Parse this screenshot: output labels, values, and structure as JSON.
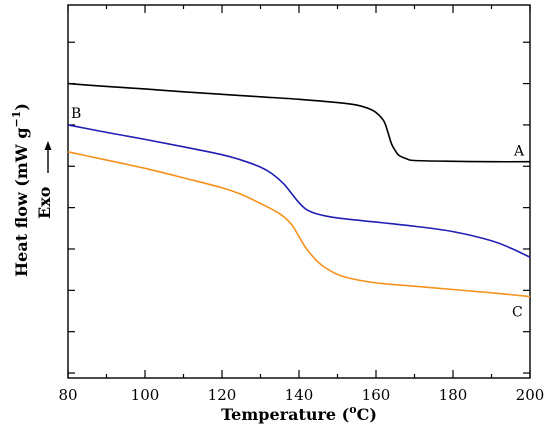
{
  "chart_data": {
    "type": "line",
    "xlabel": "Temperature (°C)",
    "xlabel_parts": {
      "main": "Temperature (",
      "sup": "o",
      "tail": "C)"
    },
    "ylabel_parts": {
      "main": "Heat flow (mW g",
      "sup": "−1",
      "tail": ")"
    },
    "exo_label": "Exo",
    "xlim": [
      80,
      200
    ],
    "xticks": [
      80,
      100,
      120,
      140,
      160,
      180,
      200
    ],
    "y_tick_labels_shown": false,
    "grid": false,
    "legend": "none",
    "series": [
      {
        "label": "A",
        "color": "#000000",
        "points": [
          [
            80,
            0.0
          ],
          [
            90,
            -0.07
          ],
          [
            100,
            -0.13
          ],
          [
            110,
            -0.2
          ],
          [
            120,
            -0.26
          ],
          [
            130,
            -0.32
          ],
          [
            140,
            -0.38
          ],
          [
            150,
            -0.46
          ],
          [
            155,
            -0.52
          ],
          [
            158,
            -0.6
          ],
          [
            160,
            -0.7
          ],
          [
            162,
            -0.9
          ],
          [
            163,
            -1.15
          ],
          [
            164,
            -1.45
          ],
          [
            165,
            -1.62
          ],
          [
            166,
            -1.74
          ],
          [
            168,
            -1.82
          ],
          [
            170,
            -1.86
          ],
          [
            180,
            -1.88
          ],
          [
            190,
            -1.89
          ],
          [
            200,
            -1.89
          ]
        ]
      },
      {
        "label": "B",
        "color": "#1f1fb4",
        "points": [
          [
            80,
            -1.0
          ],
          [
            90,
            -1.18
          ],
          [
            100,
            -1.35
          ],
          [
            110,
            -1.53
          ],
          [
            120,
            -1.72
          ],
          [
            125,
            -1.85
          ],
          [
            130,
            -2.02
          ],
          [
            133,
            -2.18
          ],
          [
            136,
            -2.42
          ],
          [
            138,
            -2.65
          ],
          [
            140,
            -2.88
          ],
          [
            142,
            -3.05
          ],
          [
            145,
            -3.16
          ],
          [
            150,
            -3.25
          ],
          [
            160,
            -3.35
          ],
          [
            170,
            -3.45
          ],
          [
            180,
            -3.58
          ],
          [
            190,
            -3.8
          ],
          [
            195,
            -3.98
          ],
          [
            200,
            -4.2
          ]
        ]
      },
      {
        "label": "C",
        "color": "#f5921e",
        "points": [
          [
            80,
            -1.65
          ],
          [
            90,
            -1.85
          ],
          [
            100,
            -2.05
          ],
          [
            110,
            -2.28
          ],
          [
            120,
            -2.52
          ],
          [
            125,
            -2.68
          ],
          [
            130,
            -2.9
          ],
          [
            135,
            -3.15
          ],
          [
            138,
            -3.4
          ],
          [
            140,
            -3.7
          ],
          [
            142,
            -4.0
          ],
          [
            145,
            -4.32
          ],
          [
            148,
            -4.52
          ],
          [
            152,
            -4.68
          ],
          [
            160,
            -4.82
          ],
          [
            170,
            -4.9
          ],
          [
            180,
            -4.98
          ],
          [
            190,
            -5.06
          ],
          [
            200,
            -5.15
          ]
        ]
      }
    ],
    "ylim": [
      -7.12,
      1.9
    ]
  }
}
